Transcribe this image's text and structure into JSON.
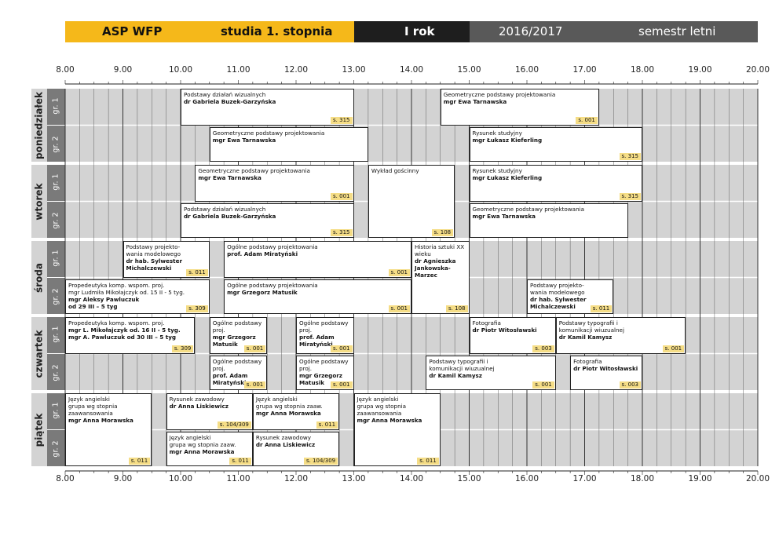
{
  "header": {
    "school": "ASP WFP",
    "level": "studia 1. stopnia",
    "year": "I rok",
    "academic_year": "2016/2017",
    "semester": "semestr letni"
  },
  "hours": [
    "8.00",
    "9.00",
    "10.00",
    "11.00",
    "12.00",
    "13.00",
    "14.00",
    "15.00",
    "16.00",
    "17.00",
    "18.00",
    "19.00",
    "20.00"
  ],
  "days": [
    {
      "name": "poniedziałek",
      "groups": [
        "gr. 1",
        "gr. 2"
      ]
    },
    {
      "name": "wtorek",
      "groups": [
        "gr. 1",
        "gr. 2"
      ]
    },
    {
      "name": "środa",
      "groups": [
        "gr. 1",
        "gr. 2"
      ]
    },
    {
      "name": "czwartek",
      "groups": [
        "gr. 1",
        "gr. 2"
      ]
    },
    {
      "name": "piątek",
      "groups": [
        "gr. 1",
        "gr. 2"
      ]
    }
  ],
  "classes": [
    {
      "day": 0,
      "row": 0,
      "rows": 1,
      "start": 10.0,
      "end": 13.0,
      "title": "Podstawy działań wizualnych",
      "teacher": "dr Gabriela Buzek-Garzyńska",
      "room": "s. 315"
    },
    {
      "day": 0,
      "row": 0,
      "rows": 1,
      "start": 14.5,
      "end": 17.25,
      "title": "Geometryczne podstawy projektowania",
      "teacher": "mgr Ewa Tarnawska",
      "room": "s. 001"
    },
    {
      "day": 0,
      "row": 1,
      "rows": 1,
      "start": 10.5,
      "end": 13.25,
      "title": "Geometryczne podstawy projektowania",
      "teacher": "mgr Ewa Tarnawska",
      "room": ""
    },
    {
      "day": 0,
      "row": 1,
      "rows": 1,
      "start": 15.0,
      "end": 18.0,
      "title": "Rysunek studyjny",
      "teacher": "mgr Łukasz Kieferling",
      "room": "s. 315"
    },
    {
      "day": 1,
      "row": 0,
      "rows": 1,
      "start": 10.25,
      "end": 13.0,
      "title": "Geometryczne podstawy projektowania",
      "teacher": "mgr Ewa Tarnawska",
      "room": "s. 001"
    },
    {
      "day": 1,
      "row": 0,
      "rows": 2,
      "start": 13.25,
      "end": 14.75,
      "title": "Wykład gościnny",
      "teacher": "",
      "room": "s. 108"
    },
    {
      "day": 1,
      "row": 0,
      "rows": 1,
      "start": 15.0,
      "end": 18.0,
      "title": "Rysunek studyjny",
      "teacher": "mgr Łukasz Kieferling",
      "room": "s. 315"
    },
    {
      "day": 1,
      "row": 1,
      "rows": 1,
      "start": 10.0,
      "end": 13.0,
      "title": "Podstawy działań wizualnych",
      "teacher": "dr Gabriela Buzek-Garzyńska",
      "room": "s. 315"
    },
    {
      "day": 1,
      "row": 1,
      "rows": 1,
      "start": 15.0,
      "end": 17.75,
      "title": "Geometryczne podstawy projektowania",
      "teacher": "mgr Ewa Tarnawska",
      "room": ""
    },
    {
      "day": 2,
      "row": 0,
      "rows": 1,
      "start": 9.0,
      "end": 10.5,
      "title": "Podstawy projekto-\nwania modelowego",
      "teacher": "dr hab. Sylwester\nMichalczewski",
      "room": "s. 011"
    },
    {
      "day": 2,
      "row": 0,
      "rows": 1,
      "start": 10.75,
      "end": 14.0,
      "title": "Ogólne podstawy projektowania",
      "teacher": "prof. Adam Miratyński",
      "room": "s. 001"
    },
    {
      "day": 2,
      "row": 0,
      "rows": 2,
      "start": 14.0,
      "end": 15.0,
      "title": "Historia sztuki XX wieku",
      "teacher": "dr Agnieszka\nJankowska-Marzec",
      "room": "s. 108"
    },
    {
      "day": 2,
      "row": 1,
      "rows": 1,
      "start": 8.0,
      "end": 10.5,
      "title": "Propedeutyka komp. wspom. proj.\nmgr Ludmiła Mikołajczyk od. 15 II - 5 tyg.",
      "teacher": "mgr Aleksy Pawluczuk\nod 29 III – 5 tyg",
      "room": "s. 309"
    },
    {
      "day": 2,
      "row": 1,
      "rows": 1,
      "start": 10.75,
      "end": 14.0,
      "title": "Ogólne podstawy projektowania",
      "teacher": "mgr Grzegorz Matusik",
      "room": "s. 001"
    },
    {
      "day": 2,
      "row": 1,
      "rows": 1,
      "start": 16.0,
      "end": 17.5,
      "title": "Podstawy projekto-\nwania modelowego",
      "teacher": "dr hab. Sylwester\nMichalczewski",
      "room": "s. 011"
    },
    {
      "day": 3,
      "row": 0,
      "rows": 1,
      "start": 8.0,
      "end": 10.25,
      "title": "Propedeutyka komp. wspom. proj.",
      "teacher": "mgr L. Mikołajczyk od. 16 II - 5 tyg.\nmgr A. Pawluczuk od 30 III – 5 tyg",
      "room": "s. 309"
    },
    {
      "day": 3,
      "row": 0,
      "rows": 1,
      "start": 10.5,
      "end": 11.5,
      "title": "Ogólne podstawy proj.",
      "teacher": "mgr Grzegorz Matusik",
      "room": "s. 001"
    },
    {
      "day": 3,
      "row": 0,
      "rows": 1,
      "start": 12.0,
      "end": 13.0,
      "title": "Ogólne podstawy proj.",
      "teacher": "prof. Adam Miratyński",
      "room": "s. 001"
    },
    {
      "day": 3,
      "row": 0,
      "rows": 1,
      "start": 15.0,
      "end": 16.5,
      "title": "Fotografia",
      "teacher": "dr Piotr Witosławski",
      "room": "s. 003"
    },
    {
      "day": 3,
      "row": 0,
      "rows": 1,
      "start": 16.5,
      "end": 18.75,
      "title": "Podstawy typografii i\nkomunikacji wiuzualnej",
      "teacher": "dr Kamil Kamysz",
      "room": "s. 001"
    },
    {
      "day": 3,
      "row": 1,
      "rows": 1,
      "start": 10.5,
      "end": 11.5,
      "title": "Ogólne podstawy proj.",
      "teacher": "prof. Adam Miratyński",
      "room": "s. 001"
    },
    {
      "day": 3,
      "row": 1,
      "rows": 1,
      "start": 12.0,
      "end": 13.0,
      "title": "Ogólne podstawy proj.",
      "teacher": "mgr Grzegorz Matusik",
      "room": "s. 001"
    },
    {
      "day": 3,
      "row": 1,
      "rows": 1,
      "start": 14.25,
      "end": 16.5,
      "title": "Podstawy typografii i\nkomunikacji wiuzualnej",
      "teacher": "dr Kamil Kamysz",
      "room": "s. 001"
    },
    {
      "day": 3,
      "row": 1,
      "rows": 1,
      "start": 16.75,
      "end": 18.0,
      "title": "Fotografia",
      "teacher": "dr Piotr Witosławski",
      "room": "s. 003"
    },
    {
      "day": 4,
      "row": 0,
      "rows": 2,
      "start": 8.0,
      "end": 9.5,
      "title": "Język angielski\ngrupa wg stopnia\nzaawansowania",
      "teacher": "mgr Anna Morawska",
      "room": "s. 011"
    },
    {
      "day": 4,
      "row": 0,
      "rows": 1,
      "start": 9.75,
      "end": 11.25,
      "title": "Rysunek zawodowy",
      "teacher": "dr Anna Liskiewicz",
      "room": "s. 104/309"
    },
    {
      "day": 4,
      "row": 0,
      "rows": 1,
      "start": 11.25,
      "end": 12.75,
      "title": "Język angielski\ngrupa wg stopnia zaaw.",
      "teacher": "mgr Anna Morawska",
      "room": "s. 011"
    },
    {
      "day": 4,
      "row": 0,
      "rows": 2,
      "start": 13.0,
      "end": 14.5,
      "title": "Język angielski\ngrupa wg stopnia\nzaawansowania",
      "teacher": "mgr Anna Morawska",
      "room": "s. 011"
    },
    {
      "day": 4,
      "row": 1,
      "rows": 1,
      "start": 9.75,
      "end": 11.25,
      "title": "Język angielski\ngrupa wg stopnia zaaw.",
      "teacher": "mgr Anna Morawska",
      "room": "s. 011"
    },
    {
      "day": 4,
      "row": 1,
      "rows": 1,
      "start": 11.25,
      "end": 12.75,
      "title": "Rysunek zawodowy",
      "teacher": "dr Anna Liskiewicz",
      "room": "s. 104/309"
    }
  ]
}
